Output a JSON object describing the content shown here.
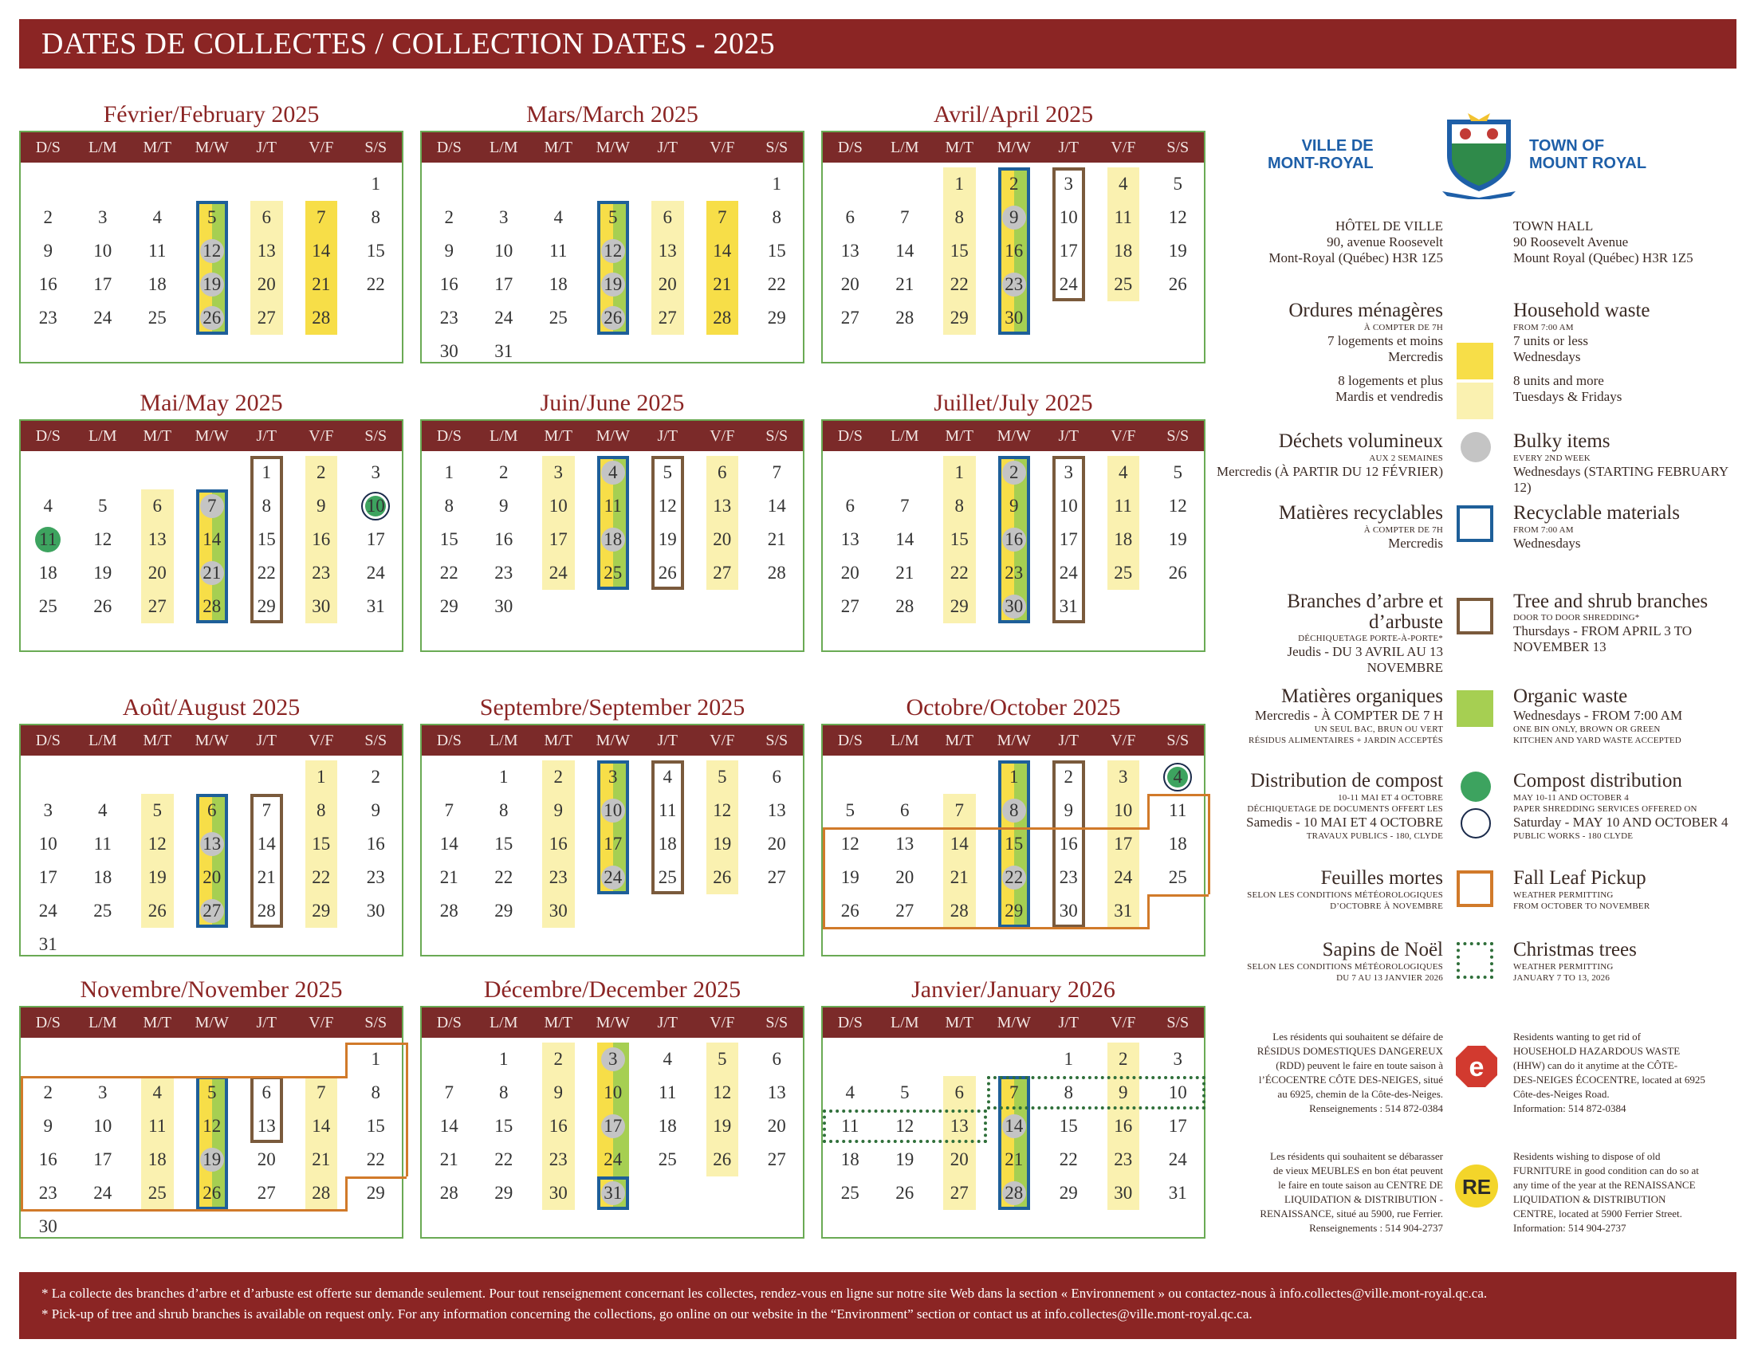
{
  "header": {
    "title": "DATES DE COLLECTES / COLLECTION DATES - 2025"
  },
  "days": [
    "D/S",
    "L/M",
    "M/T",
    "M/W",
    "J/T",
    "V/F",
    "S/S"
  ],
  "months": [
    {
      "title": "Février/February 2025",
      "start": 6,
      "length": 28,
      "yellow": [
        4,
        7
      ],
      "pale": [
        5
      ],
      "green": [
        3
      ],
      "grey": [
        12,
        19,
        26
      ],
      "blue": [
        5,
        26
      ],
      "brown": [],
      "green_dots": [],
      "ring_dots": [],
      "orange": "",
      "xmas": []
    },
    {
      "title": "Mars/March 2025",
      "start": 6,
      "length": 31,
      "yellow": [
        4,
        7
      ],
      "pale": [
        5
      ],
      "green": [
        3
      ],
      "grey": [
        12,
        19,
        26
      ],
      "blue": [
        5,
        26
      ],
      "brown": [],
      "green_dots": [],
      "ring_dots": [],
      "orange": "",
      "xmas": []
    },
    {
      "title": "Avril/April 2025",
      "start": 2,
      "length": 30,
      "yellow": [
        2,
        5
      ],
      "pale": [],
      "green": [
        3
      ],
      "grey": [
        9,
        23
      ],
      "blue": [
        2,
        30
      ],
      "brown": [
        3,
        24
      ],
      "green_dots": [],
      "ring_dots": [],
      "orange": "",
      "xmas": []
    },
    {
      "title": "Mai/May 2025",
      "start": 4,
      "length": 31,
      "yellow": [
        2,
        5
      ],
      "pale": [],
      "green": [
        3
      ],
      "grey": [
        7,
        21
      ],
      "blue": [
        7,
        28
      ],
      "brown": [
        1,
        29
      ],
      "green_dots": [
        11
      ],
      "ring_dots": [
        10
      ],
      "orange": "",
      "xmas": []
    },
    {
      "title": "Juin/June 2025",
      "start": 0,
      "length": 30,
      "yellow": [
        2,
        5
      ],
      "pale": [],
      "green": [
        3
      ],
      "grey": [
        4,
        18
      ],
      "blue": [
        4,
        25
      ],
      "brown": [
        5,
        26
      ],
      "green_dots": [],
      "ring_dots": [],
      "orange": "",
      "xmas": []
    },
    {
      "title": "Juillet/July 2025",
      "start": 2,
      "length": 31,
      "yellow": [
        2,
        5
      ],
      "pale": [],
      "green": [
        3
      ],
      "grey": [
        2,
        16,
        30
      ],
      "blue": [
        2,
        30
      ],
      "brown": [
        3,
        31
      ],
      "green_dots": [],
      "ring_dots": [],
      "orange": "",
      "xmas": []
    },
    {
      "title": "Août/August 2025",
      "start": 5,
      "length": 31,
      "yellow": [
        2,
        5
      ],
      "pale": [],
      "green": [
        3
      ],
      "grey": [
        13,
        27
      ],
      "blue": [
        6,
        27
      ],
      "brown": [
        7,
        28
      ],
      "green_dots": [],
      "ring_dots": [],
      "orange": "",
      "xmas": []
    },
    {
      "title": "Septembre/September 2025",
      "start": 1,
      "length": 30,
      "yellow": [
        2,
        5
      ],
      "pale": [],
      "green": [
        3
      ],
      "grey": [
        10,
        24
      ],
      "blue": [
        3,
        24
      ],
      "brown": [
        4,
        25
      ],
      "green_dots": [],
      "ring_dots": [],
      "orange": "",
      "xmas": []
    },
    {
      "title": "Octobre/October 2025",
      "start": 3,
      "length": 31,
      "yellow": [
        2,
        5
      ],
      "pale": [],
      "green": [
        3
      ],
      "grey": [
        8,
        22
      ],
      "blue": [
        1,
        29
      ],
      "brown": [
        2,
        30
      ],
      "green_dots": [],
      "ring_dots": [
        4
      ],
      "orange": "oct",
      "xmas": []
    },
    {
      "title": "Novembre/November 2025",
      "start": 6,
      "length": 30,
      "yellow": [
        2,
        5
      ],
      "pale": [],
      "green": [
        3
      ],
      "grey": [
        19
      ],
      "blue": [
        5,
        26
      ],
      "brown": [
        6,
        13
      ],
      "green_dots": [],
      "ring_dots": [],
      "orange": "nov",
      "xmas": []
    },
    {
      "title": "Décembre/December 2025",
      "start": 1,
      "length": 31,
      "yellow": [
        2,
        5
      ],
      "pale": [],
      "green": [
        3
      ],
      "grey": [
        3,
        17,
        31
      ],
      "blue": [
        31
      ],
      "brown": [],
      "green_dots": [],
      "ring_dots": [],
      "orange": "",
      "xmas": []
    },
    {
      "title": "Janvier/January 2026",
      "start": 4,
      "length": 31,
      "yellow": [
        2,
        5
      ],
      "pale": [],
      "green": [
        3
      ],
      "grey": [
        14,
        28
      ],
      "blue": [
        7,
        28
      ],
      "brown": [],
      "green_dots": [],
      "ring_dots": [],
      "orange": "",
      "xmas": [
        7,
        13
      ]
    }
  ],
  "legend": {
    "logo_fr": [
      "VILLE DE",
      "MONT-ROYAL"
    ],
    "logo_en": [
      "TOWN OF",
      "MOUNT ROYAL"
    ],
    "hall_fr": [
      "HÔTEL DE VILLE",
      "90, avenue Roosevelt",
      "Mont-Royal (Québec) H3R 1Z5"
    ],
    "hall_en": [
      "TOWN HALL",
      "90 Roosevelt Avenue",
      "Mount Royal (Québec) H3R 1Z5"
    ],
    "items": [
      {
        "fr_title": "Ordures ménagères",
        "fr_small": "À COMPTER DE 7H",
        "fr_lines": [
          "7 logements et moins",
          "Mercredis",
          "8 logements et plus",
          "Mardis et vendredis"
        ],
        "en_title": "Household waste",
        "en_small": "FROM 7:00 AM",
        "en_lines": [
          "7 units or less",
          "Wednesdays",
          "8 units and more",
          "Tuesdays & Fridays"
        ]
      },
      {
        "fr_title": "Déchets volumineux",
        "fr_small": "AUX 2 SEMAINES",
        "fr_lines": [
          "Mercredis (À PARTIR DU 12 FÉVRIER)"
        ],
        "en_title": "Bulky items",
        "en_small": "EVERY 2ND WEEK",
        "en_lines": [
          "Wednesdays (STARTING FEBRUARY 12)"
        ]
      },
      {
        "fr_title": "Matières recyclables",
        "fr_small": "À COMPTER DE 7H",
        "fr_lines": [
          "Mercredis"
        ],
        "en_title": "Recyclable materials",
        "en_small": "FROM 7:00 AM",
        "en_lines": [
          "Wednesdays"
        ]
      },
      {
        "fr_title": "Branches d’arbre et d’arbuste",
        "fr_small": "DÉCHIQUETAGE PORTE-À-PORTE*",
        "fr_lines": [
          "Jeudis - DU 3 AVRIL AU 13 NOVEMBRE"
        ],
        "en_title": "Tree and shrub branches",
        "en_small": "DOOR TO DOOR SHREDDING*",
        "en_lines": [
          "Thursdays - FROM APRIL 3 TO NOVEMBER 13"
        ]
      },
      {
        "fr_title": "Matières organiques",
        "fr_small": "UN SEUL BAC, BRUN OU VERT",
        "fr_lines": [
          "Mercredis - À COMPTER DE 7 H",
          "RÉSIDUS ALIMENTAIRES + JARDIN ACCEPTÉS"
        ],
        "en_title": "Organic waste",
        "en_small": "ONE BIN ONLY, BROWN OR GREEN",
        "en_lines": [
          "Wednesdays - FROM 7:00 AM",
          "KITCHEN AND YARD WASTE ACCEPTED"
        ]
      },
      {
        "fr_title": "Distribution de compost",
        "fr_small": "10-11 MAI ET 4 OCTOBRE",
        "fr_lines": [
          "DÉCHIQUETAGE DE DOCUMENTS OFFERT LES",
          "Samedis - 10 MAI ET 4 OCTOBRE",
          "TRAVAUX PUBLICS - 180, CLYDE"
        ],
        "en_title": "Compost distribution",
        "en_small": "MAY 10-11 AND OCTOBER 4",
        "en_lines": [
          "PAPER SHREDDING SERVICES OFFERED ON",
          "Saturday - MAY 10 AND OCTOBER 4",
          "PUBLIC WORKS - 180 CLYDE"
        ]
      },
      {
        "fr_title": "Feuilles mortes",
        "fr_small": "SELON LES CONDITIONS MÉTÉOROLOGIQUES",
        "fr_lines": [
          "D’OCTOBRE À NOVEMBRE"
        ],
        "en_title": "Fall Leaf Pickup",
        "en_small": "WEATHER PERMITTING",
        "en_lines": [
          "FROM OCTOBER TO NOVEMBER"
        ]
      },
      {
        "fr_title": "Sapins de Noël",
        "fr_small": "SELON LES CONDITIONS MÉTÉOROLOGIQUES",
        "fr_lines": [
          "DU 7 AU 13 JANVIER 2026"
        ],
        "en_title": "Christmas trees",
        "en_small": "WEATHER PERMITTING",
        "en_lines": [
          "JANUARY 7 TO 13, 2026"
        ]
      }
    ],
    "hhw_fr": [
      "Les résidents qui souhaitent se défaire de",
      "RÉSIDUS DOMESTIQUES DANGEREUX",
      "(RDD) peuvent le faire en toute saison à",
      "l’ÉCOCENTRE CÔTE DES-NEIGES, situé",
      "au 6925, chemin de la Côte-des-Neiges.",
      "Renseignements : 514 872-0384"
    ],
    "hhw_en": [
      "Residents wanting to get rid of",
      "HOUSEHOLD HAZARDOUS WASTE",
      "(HHW) can do it anytime at the CÔTE-",
      "DES-NEIGES ÉCOCENTRE, located at 6925",
      "Côte-des-Neiges Road.",
      "Information: 514 872-0384"
    ],
    "furn_fr": [
      "Les résidents qui souhaitent se débarasser",
      "de vieux MEUBLES en bon état peuvent",
      "le faire en toute saison au CENTRE DE",
      "LIQUIDATION & DISTRIBUTION -",
      "RENAISSANCE, situé au 5900, rue Ferrier.",
      "Renseignements : 514 904-2737"
    ],
    "furn_en": [
      "Residents wishing to dispose of old",
      "FURNITURE in good condition can do so at",
      "any time of the year at the RENAISSANCE",
      "LIQUIDATION & DISTRIBUTION",
      "CENTRE, located at 5900 Ferrier Street.",
      "Information: 514 904-2737"
    ],
    "hhw_icon": "e",
    "furn_icon": "RE"
  },
  "footer": {
    "line_fr": "* La collecte des branches d’arbre et d’arbuste est offerte sur demande seulement. Pour tout renseignement concernant les collectes, rendez-vous en ligne sur notre site Web dans la section « Environnement » ou contactez-nous à info.collectes@ville.mont-royal.qc.ca.",
    "line_en": "* Pick-up of tree and shrub branches is available on request only. For any information concerning the collections, go online on our website in the “Environment” section or contact us at info.collectes@ville.mont-royal.qc.ca."
  },
  "colors": {
    "banner": "#8b2524",
    "household_7_or_less": "#f7de48",
    "household_8_or_more": "#faf1b0",
    "bulky": "#c4c4c4",
    "recyclable": "#1e5f99",
    "branches": "#7a5a3c",
    "organic": "#a6cf52",
    "compost": "#3da35f",
    "leaves": "#d17a2a",
    "xmas": "#2f6f3a"
  }
}
